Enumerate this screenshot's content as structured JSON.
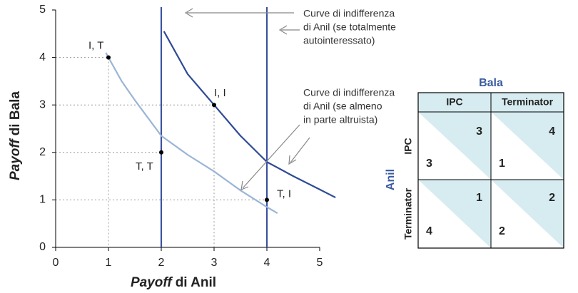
{
  "chart_data": {
    "type": "line",
    "xlabel": [
      "Payoff",
      "di Anil"
    ],
    "ylabel": [
      "Payoff",
      "di Bala"
    ],
    "xlim": [
      0,
      5
    ],
    "ylim": [
      0,
      5
    ],
    "xticks": [
      0,
      1,
      2,
      3,
      4,
      5
    ],
    "yticks": [
      0,
      1,
      2,
      3,
      4,
      5
    ],
    "vertical_lines": {
      "color": "#3a52a0",
      "values": [
        2,
        4
      ]
    },
    "series": [
      {
        "color": "#2e4a96",
        "x": [
          2.05,
          2.5,
          3,
          3.5,
          4,
          4.5,
          5,
          5.3
        ],
        "values": [
          4.55,
          3.65,
          3,
          2.35,
          1.8,
          1.5,
          1.22,
          1.05
        ]
      },
      {
        "color": "#9ab5d6",
        "x": [
          0.95,
          1.25,
          1.5,
          2,
          2.5,
          3,
          3.5,
          4,
          4.2
        ],
        "values": [
          4.1,
          3.5,
          3.1,
          2.35,
          1.95,
          1.6,
          1.2,
          0.85,
          0.72
        ]
      }
    ],
    "points": {
      "x": [
        1,
        3,
        2,
        4
      ],
      "values": [
        4,
        3,
        2,
        1
      ],
      "labels": [
        "I, T",
        "I, I",
        "T, T",
        "T, I"
      ]
    },
    "annotations": [
      [
        "Curve di indifferenza",
        "di Anil (se totalmente",
        "autointeressato)"
      ],
      [
        "Curve di indifferenza",
        "di Anil (se almeno",
        "in parte altruista)"
      ]
    ]
  },
  "table": {
    "column_player": "Bala",
    "row_player": "Anil",
    "columns": [
      "IPC",
      "Terminator"
    ],
    "rows": [
      "IPC",
      "Terminator"
    ],
    "cells": [
      [
        {
          "anil": 3,
          "bala": 3
        },
        {
          "anil": 1,
          "bala": 4
        }
      ],
      [
        {
          "anil": 4,
          "bala": 1
        },
        {
          "anil": 2,
          "bala": 2
        }
      ]
    ]
  }
}
